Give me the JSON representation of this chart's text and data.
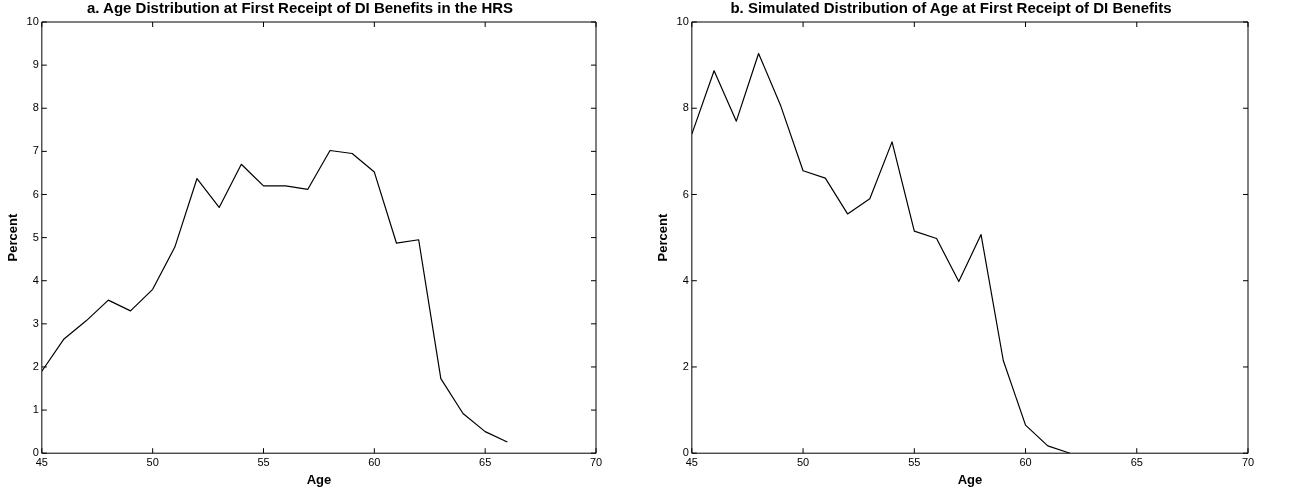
{
  "chart_data": [
    {
      "type": "line",
      "title": "a. Age Distribution at First Receipt of DI Benefits in the HRS",
      "xlabel": "Age",
      "ylabel": "Percent",
      "x": [
        45,
        46,
        47,
        48,
        49,
        50,
        51,
        52,
        53,
        54,
        55,
        56,
        57,
        58,
        59,
        60,
        61,
        62,
        63,
        64,
        65,
        66
      ],
      "values": [
        1.9,
        2.65,
        3.07,
        3.55,
        3.3,
        3.8,
        4.78,
        6.37,
        5.7,
        6.7,
        6.2,
        6.2,
        6.12,
        7.02,
        6.95,
        6.52,
        4.87,
        4.95,
        1.73,
        0.92,
        0.5,
        0.26
      ],
      "color": "#000000",
      "xlim": [
        45,
        70
      ],
      "ylim": [
        0,
        10
      ],
      "xticks": [
        45,
        50,
        55,
        60,
        65,
        70
      ],
      "yticks": [
        0,
        1,
        2,
        3,
        4,
        5,
        6,
        7,
        8,
        9,
        10
      ],
      "marker": "none",
      "grid": false,
      "legend": false
    },
    {
      "type": "line",
      "title": "b. Simulated Distribution of Age at First Receipt of DI Benefits",
      "xlabel": "Age",
      "ylabel": "Percent",
      "x": [
        45,
        46,
        47,
        48,
        49,
        50,
        51,
        52,
        53,
        54,
        55,
        56,
        57,
        58,
        59,
        60,
        61,
        62
      ],
      "values": [
        7.4,
        8.87,
        7.7,
        9.27,
        8.05,
        6.55,
        6.38,
        5.55,
        5.9,
        7.22,
        5.15,
        4.98,
        3.98,
        5.07,
        2.15,
        0.65,
        0.17,
        0.0
      ],
      "color": "#000000",
      "xlim": [
        45,
        70
      ],
      "ylim": [
        0,
        10
      ],
      "xticks": [
        45,
        50,
        55,
        60,
        65,
        70
      ],
      "yticks": [
        0,
        2,
        4,
        6,
        8,
        10
      ],
      "marker": "none",
      "grid": false,
      "legend": false
    }
  ]
}
